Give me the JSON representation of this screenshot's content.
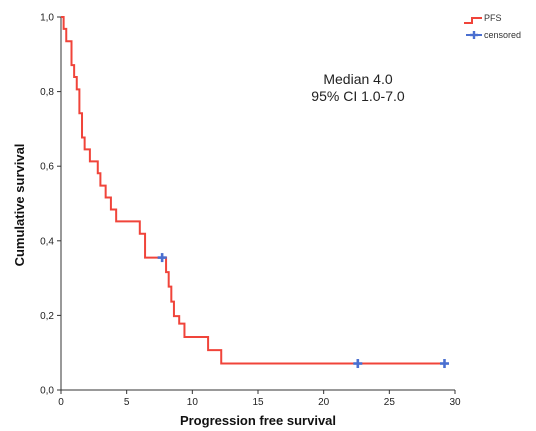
{
  "chart_data": {
    "type": "line",
    "title": "",
    "xlabel": "Progression free survival",
    "ylabel": "Cumulative survival",
    "xlim": [
      0,
      30
    ],
    "ylim": [
      0,
      1
    ],
    "x_ticks": [
      "0",
      "5",
      "10",
      "15",
      "20",
      "25",
      "30"
    ],
    "y_ticks": [
      "0,0",
      "0,2",
      "0,4",
      "0,6",
      "0,8",
      "1,0"
    ],
    "grid": false,
    "legend_position": "top-right",
    "legend": [
      {
        "label": "PFS",
        "kind": "line",
        "color": "#f0443a"
      },
      {
        "label": "censored",
        "kind": "marker",
        "color": "#4a6fd0"
      }
    ],
    "annotations": [
      "Median 4.0",
      "95% CI 1.0-7.0"
    ],
    "series": [
      {
        "name": "PFS",
        "color": "#f0443a",
        "step_x": [
          0,
          0.2,
          0.4,
          0.8,
          1.0,
          1.2,
          1.4,
          1.6,
          1.8,
          2.2,
          2.8,
          3.0,
          3.4,
          3.8,
          4.2,
          6.0,
          6.4,
          8.0,
          8.2,
          8.4,
          8.6,
          9.0,
          9.4,
          11.2,
          12.2,
          29.2
        ],
        "step_y": [
          1.0,
          0.968,
          0.935,
          0.871,
          0.839,
          0.806,
          0.742,
          0.677,
          0.645,
          0.613,
          0.581,
          0.548,
          0.516,
          0.484,
          0.452,
          0.419,
          0.355,
          0.316,
          0.277,
          0.237,
          0.198,
          0.178,
          0.142,
          0.107,
          0.071,
          0.071
        ]
      }
    ],
    "censored": [
      {
        "x": 7.7,
        "y": 0.355
      },
      {
        "x": 22.6,
        "y": 0.071
      },
      {
        "x": 29.2,
        "y": 0.071
      }
    ]
  }
}
